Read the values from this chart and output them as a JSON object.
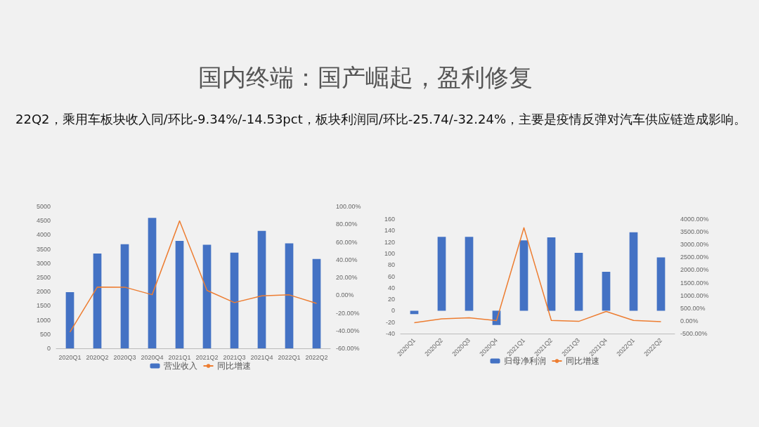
{
  "chart_data": [
    {
      "type": "bar",
      "title": "国内终端：国产崛起，盈利修复",
      "subtitle": "22Q2，乘用车板块收入同/环比-9.34%/-14.53pct，板块利润同/环比-25.74/-32.24%，主要是疫情反弹对汽车供应链造成影响。",
      "categories": [
        "2020Q1",
        "2020Q2",
        "2020Q3",
        "2020Q4",
        "2021Q1",
        "2021Q2",
        "2021Q3",
        "2021Q4",
        "2022Q1",
        "2022Q2"
      ],
      "series": [
        {
          "name": "营业收入",
          "color": "#4472c4",
          "values": [
            1980,
            3340,
            3670,
            4600,
            3790,
            3650,
            3370,
            4140,
            3700,
            3150
          ]
        },
        {
          "name": "同比增速",
          "type": "line",
          "axis": "y2",
          "color": "#ed7d31",
          "values": [
            -41.7,
            9.2,
            9.0,
            0.5,
            83.7,
            5.3,
            -8.4,
            -0.8,
            0.3,
            -9.3
          ]
        }
      ],
      "ylim": [
        0,
        5000
      ],
      "yticks": [
        0,
        500,
        1000,
        1500,
        2000,
        2500,
        3000,
        3500,
        4000,
        4500,
        5000
      ],
      "y2lim": [
        -60,
        100
      ],
      "y2ticks": [
        {
          "value": -60,
          "label": "-60.00%"
        },
        {
          "value": -40,
          "label": "-40.00%"
        },
        {
          "value": -20,
          "label": "-20.00%"
        },
        {
          "value": 0,
          "label": "0.00%"
        },
        {
          "value": 20,
          "label": "20.00%"
        },
        {
          "value": 40,
          "label": "40.00%"
        },
        {
          "value": 60,
          "label": "60.00%"
        },
        {
          "value": 80,
          "label": "80.00%"
        },
        {
          "value": 100,
          "label": "100.00%"
        }
      ],
      "grid": false,
      "legend": "bottom",
      "marker": "none"
    },
    {
      "type": "bar",
      "categories": [
        "2020Q1",
        "2020Q2",
        "2020Q3",
        "2020Q4",
        "2021Q1",
        "2021Q2",
        "2021Q3",
        "2021Q4",
        "2022Q1",
        "2022Q2"
      ],
      "series": [
        {
          "name": "归母净利润",
          "color": "#4472c4",
          "values": [
            -6,
            129,
            129,
            -25,
            123,
            128,
            101,
            68,
            137,
            93
          ]
        },
        {
          "name": "同比增速",
          "type": "line",
          "axis": "y2",
          "color": "#ed7d31",
          "values": [
            -70,
            80,
            120,
            10,
            3660,
            20,
            -20,
            370,
            20,
            -30
          ]
        }
      ],
      "ylim": [
        -40,
        160
      ],
      "yticks": [
        -40,
        -20,
        0,
        20,
        40,
        60,
        80,
        100,
        120,
        140,
        160
      ],
      "y2lim": [
        -500,
        4000
      ],
      "y2ticks": [
        {
          "value": -500,
          "label": "-500.00%"
        },
        {
          "value": 0,
          "label": "0.00%"
        },
        {
          "value": 500,
          "label": "500.00%"
        },
        {
          "value": 1000,
          "label": "1000.00%"
        },
        {
          "value": 1500,
          "label": "1500.00%"
        },
        {
          "value": 2000,
          "label": "2000.00%"
        },
        {
          "value": 2500,
          "label": "2500.00%"
        },
        {
          "value": 3000,
          "label": "3000.00%"
        },
        {
          "value": 3500,
          "label": "3500.00%"
        },
        {
          "value": 4000,
          "label": "4000.00%"
        }
      ],
      "grid": false,
      "legend": "bottom",
      "marker": "none"
    }
  ]
}
